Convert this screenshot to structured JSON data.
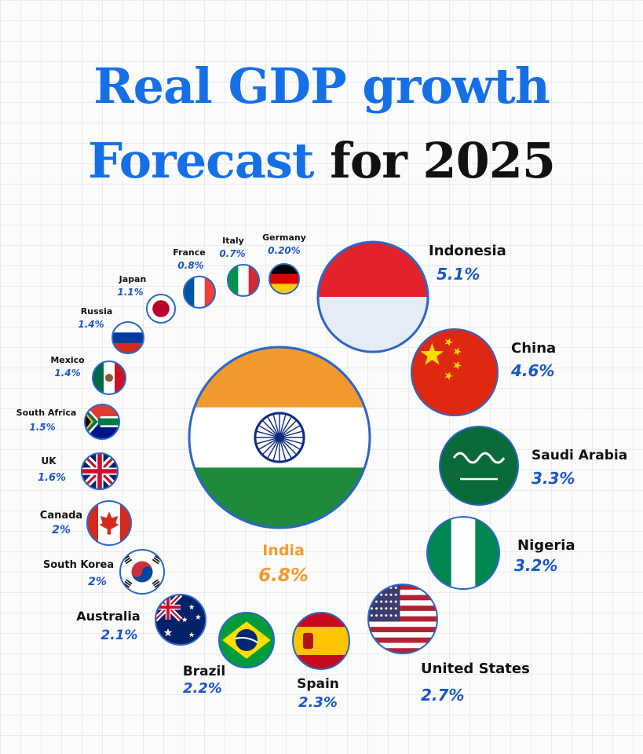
{
  "title": {
    "line1": "Real GDP growth",
    "line2_a": "Forecast",
    "line2_b": "for 2025"
  },
  "colors": {
    "accent_blue": "#1570e8",
    "value_blue": "#1a56c8",
    "india_orange": "#f29a2e",
    "ring": "#2b66c9"
  },
  "chart_data": {
    "type": "bubble",
    "unit": "%",
    "categories": [
      "India",
      "Indonesia",
      "China",
      "Saudi Arabia",
      "Nigeria",
      "United States",
      "Spain",
      "Brazil",
      "Australia",
      "South Korea",
      "Canada",
      "UK",
      "South Africa",
      "Mexico",
      "Russia",
      "Japan",
      "France",
      "Italy",
      "Germany"
    ],
    "values": [
      6.8,
      5.1,
      4.6,
      3.3,
      3.2,
      2.7,
      2.3,
      2.2,
      2.1,
      2,
      2,
      1.6,
      1.5,
      1.4,
      1.4,
      1.1,
      0.8,
      0.7,
      0.2
    ],
    "value_labels": [
      "6.8%",
      "5.1%",
      "4.6%",
      "3.3%",
      "3.2%",
      "2.7%",
      "2.3%",
      "2.2%",
      "2.1%",
      "2%",
      "2%",
      "1.6%",
      "1.5%",
      "1.4%",
      "1.4%",
      "1.1%",
      "0.8%",
      "0.7%",
      "0.20%"
    ],
    "flags": [
      "india-flag",
      "indonesia-flag",
      "china-flag",
      "saudi-arabia-flag",
      "nigeria-flag",
      "united-states-flag",
      "spain-flag",
      "brazil-flag",
      "australia-flag",
      "south-korea-flag",
      "canada-flag",
      "uk-flag",
      "south-africa-flag",
      "mexico-flag",
      "russia-flag",
      "japan-flag",
      "france-flag",
      "italy-flag",
      "germany-flag"
    ]
  }
}
